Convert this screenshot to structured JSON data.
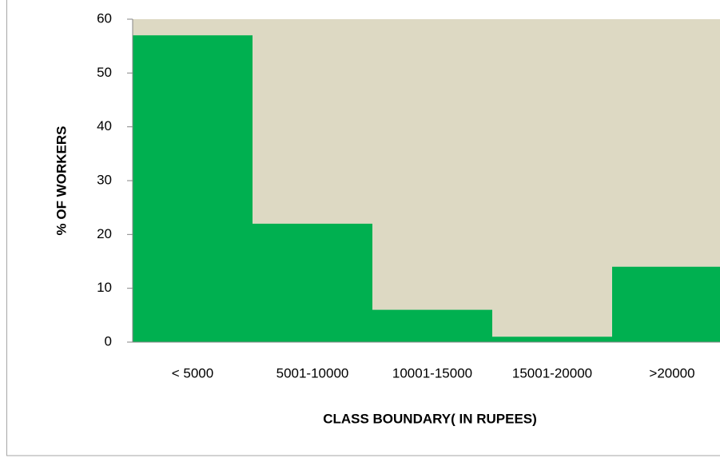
{
  "chart_data": {
    "type": "bar",
    "categories": [
      "< 5000",
      "5001-10000",
      "10001-15000",
      "15001-20000",
      ">20000"
    ],
    "values": [
      57,
      22,
      6,
      1,
      14
    ],
    "color": "#00b050",
    "plot_background": "#ddd9c3",
    "y_label": "% OF WORKERS",
    "x_label": "CLASS BOUNDARY( IN RUPEES)",
    "ylim": [
      0,
      60
    ],
    "yticks": [
      0,
      10,
      20,
      30,
      40,
      50,
      60
    ],
    "grid": false
  }
}
